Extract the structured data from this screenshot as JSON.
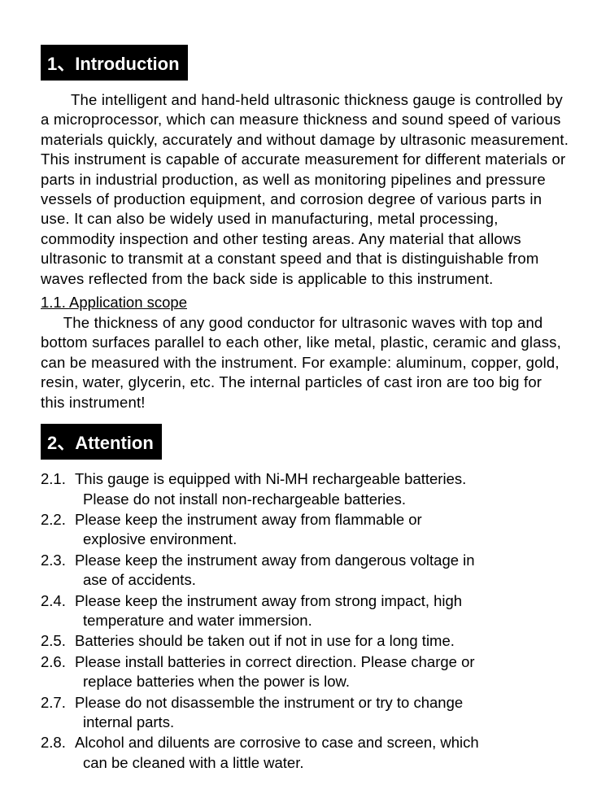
{
  "section1": {
    "header": "1、Introduction",
    "paragraph": "The intelligent and hand-held ultrasonic thickness gauge is controlled by a microprocessor, which can measure thickness and sound speed of various materials quickly, accurately and without damage by ultrasonic measurement. This instrument is capable of accurate measurement for different materials or parts in industrial production, as well as monitoring pipelines and pressure vessels of production equipment, and corrosion degree of various parts in use. It can also be widely used in manufacturing, metal processing, commodity inspection and other testing areas. Any material that allows ultrasonic to transmit at a constant speed and that is distinguishable from waves reflected from the back side is applicable to this instrument.",
    "subheading": "1.1.  Application scope",
    "sub_paragraph": "The thickness of any good conductor for ultrasonic waves with top and bottom surfaces parallel to each other,  like metal, plastic, ceramic and glass, can be measured with the instrument. For example: aluminum, copper, gold, resin, water, glycerin, etc. The internal particles of cast iron are too big for this instrument!"
  },
  "section2": {
    "header": "2、Attention",
    "items": [
      {
        "num": "2.1.",
        "line1": "This gauge is equipped with Ni-MH rechargeable batteries.",
        "line2": "Please do not install non-rechargeable batteries."
      },
      {
        "num": "2.2.",
        "line1": "Please keep the instrument away from flammable or",
        "line2": "explosive environment."
      },
      {
        "num": "2.3.",
        "line1": "Please keep the instrument away from dangerous voltage in",
        "line2": "ase of accidents."
      },
      {
        "num": "2.4.",
        "line1": "Please keep the instrument away from strong impact, high",
        "line2": "temperature and water immersion."
      },
      {
        "num": "2.5.",
        "line1": "Batteries should be taken out if not in use for a long time.",
        "line2": ""
      },
      {
        "num": "2.6.",
        "line1": "Please install batteries in correct direction. Please charge or",
        "line2": "replace batteries when the power is low."
      },
      {
        "num": "2.7.",
        "line1": "Please do not disassemble the instrument or try to change",
        "line2": "internal parts."
      },
      {
        "num": "2.8.",
        "line1": "Alcohol and diluents are corrosive to case and screen, which",
        "line2": "can be cleaned with a little water."
      }
    ]
  }
}
